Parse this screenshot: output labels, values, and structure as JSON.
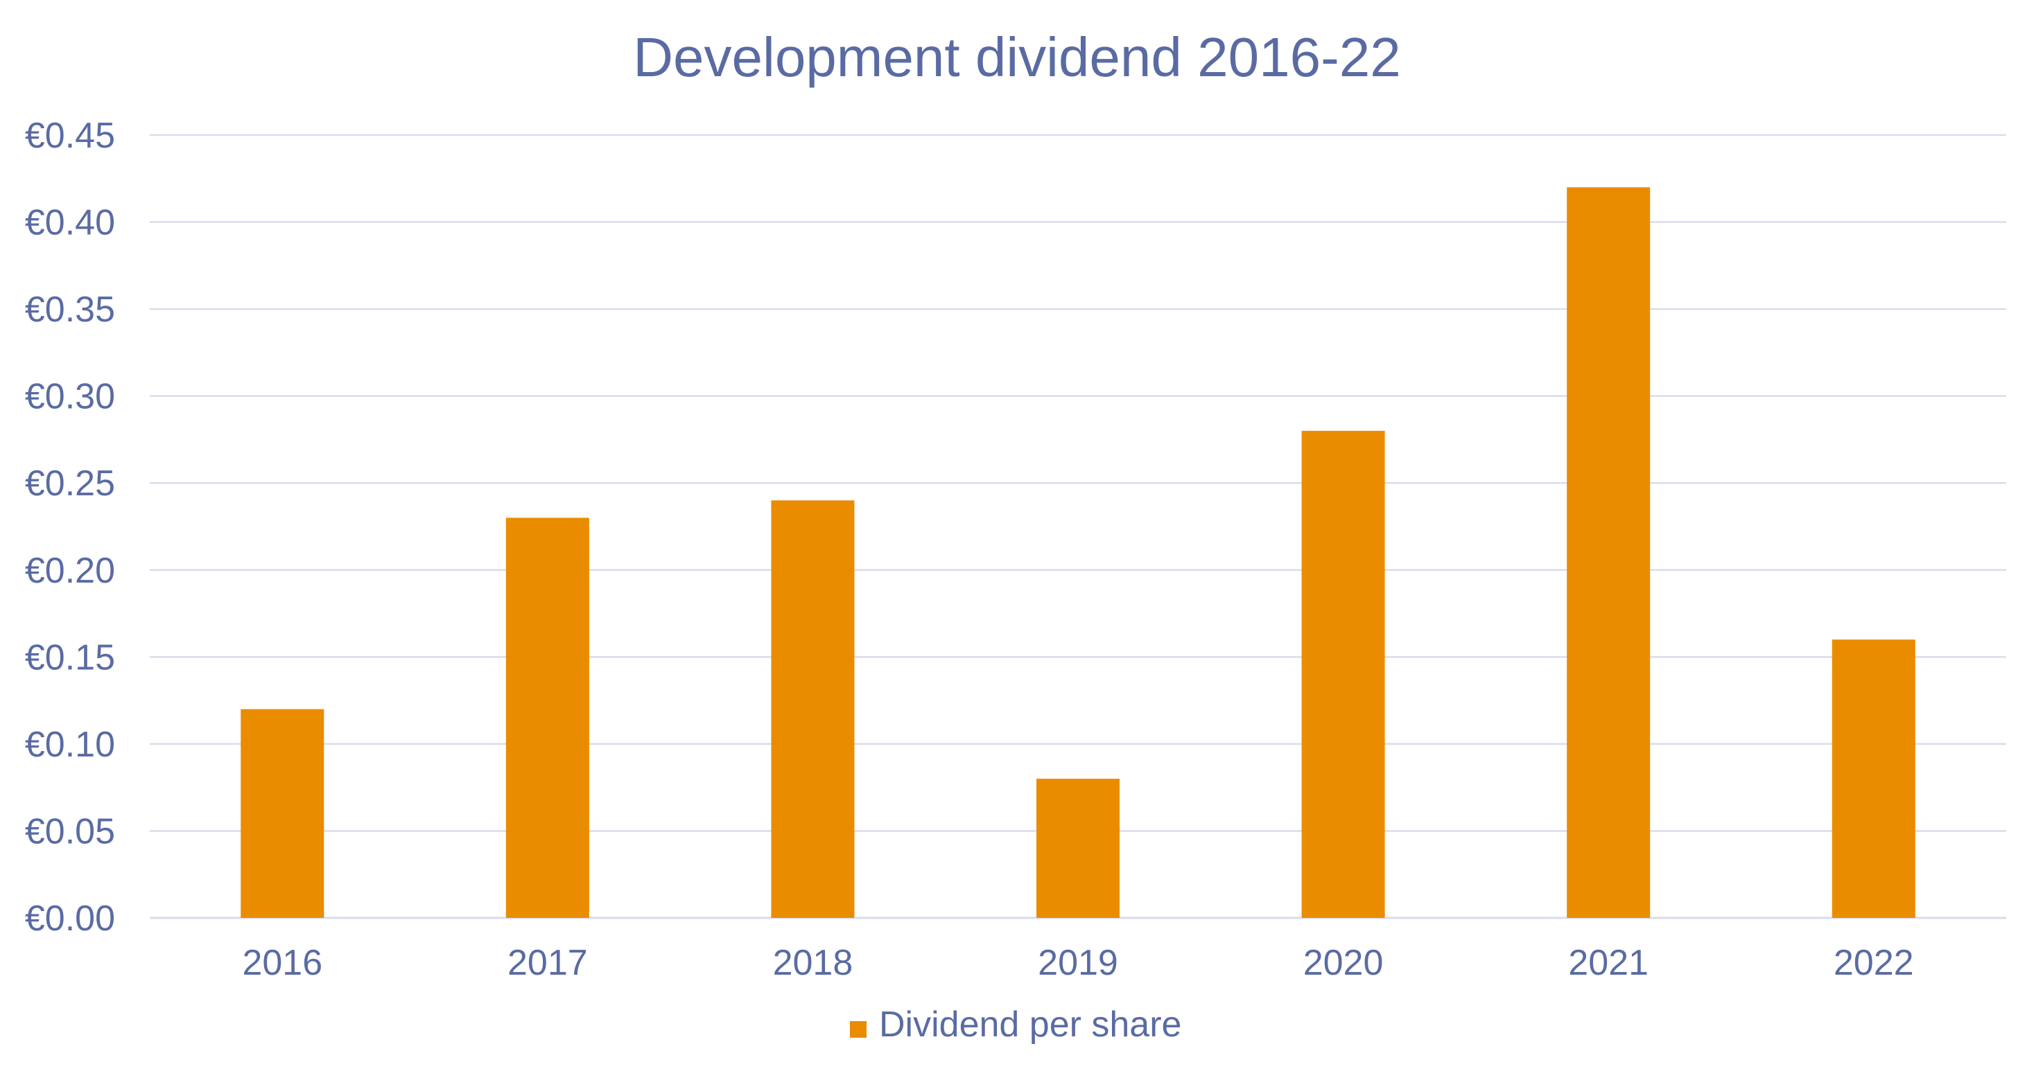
{
  "chart_data": {
    "type": "bar",
    "title": "Development dividend 2016-22",
    "categories": [
      "2016",
      "2017",
      "2018",
      "2019",
      "2020",
      "2021",
      "2022"
    ],
    "series": [
      {
        "name": "Dividend per share",
        "values": [
          0.12,
          0.23,
          0.24,
          0.08,
          0.28,
          0.42,
          0.16
        ],
        "color": "#EA8C00"
      }
    ],
    "yticks": [
      "€0.00",
      "€0.05",
      "€0.10",
      "€0.15",
      "€0.20",
      "€0.25",
      "€0.30",
      "€0.35",
      "€0.40",
      "€0.45"
    ],
    "ylim": [
      0,
      0.45
    ],
    "xlabel": "",
    "ylabel": "",
    "grid": true,
    "legend": "bottom-center",
    "colors": {
      "text": "#5A6BA3",
      "grid": "#D9DCEB",
      "bar": "#EA8C00"
    }
  }
}
